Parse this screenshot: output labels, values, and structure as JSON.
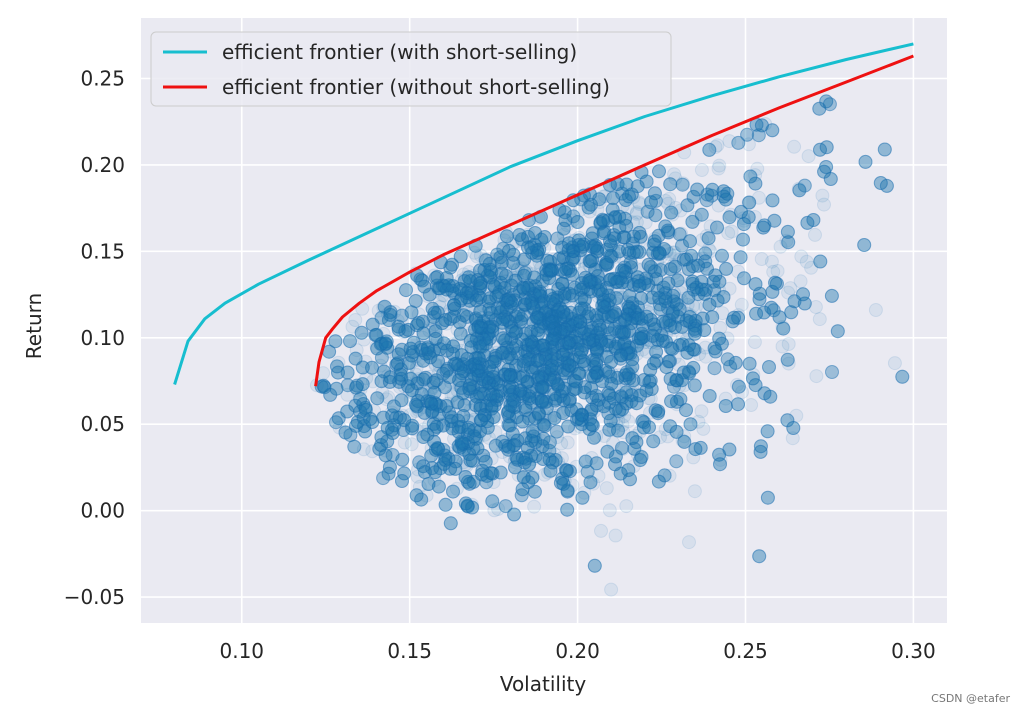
{
  "chart_data": {
    "type": "scatter",
    "xlabel": "Volatility",
    "ylabel": "Return",
    "xlim": [
      0.07,
      0.31
    ],
    "ylim": [
      -0.065,
      0.285
    ],
    "xticks": [
      0.1,
      0.15,
      0.2,
      0.25,
      0.3
    ],
    "xtick_labels": [
      "0.10",
      "0.15",
      "0.20",
      "0.25",
      "0.30"
    ],
    "yticks": [
      -0.05,
      0.0,
      0.05,
      0.1,
      0.15,
      0.2,
      0.25
    ],
    "ytick_labels": [
      "−0.05",
      "0.00",
      "0.05",
      "0.10",
      "0.15",
      "0.20",
      "0.25"
    ],
    "grid": true,
    "legend_position": "upper-left",
    "background": "#eaeaf2",
    "series": [
      {
        "name": "efficient frontier (with short-selling)",
        "kind": "line",
        "color": "#17becf",
        "x": [
          0.08,
          0.084,
          0.089,
          0.095,
          0.105,
          0.12,
          0.14,
          0.16,
          0.18,
          0.2,
          0.22,
          0.24,
          0.26,
          0.28,
          0.3
        ],
        "y": [
          0.073,
          0.098,
          0.111,
          0.12,
          0.131,
          0.145,
          0.163,
          0.181,
          0.199,
          0.214,
          0.228,
          0.24,
          0.251,
          0.261,
          0.27
        ]
      },
      {
        "name": "efficient frontier (without short-selling)",
        "kind": "line",
        "color": "#ee1111",
        "x": [
          0.122,
          0.123,
          0.125,
          0.127,
          0.13,
          0.135,
          0.14,
          0.15,
          0.16,
          0.175,
          0.19,
          0.205,
          0.22,
          0.24,
          0.26,
          0.28,
          0.3
        ],
        "y": [
          0.072,
          0.086,
          0.1,
          0.105,
          0.112,
          0.12,
          0.127,
          0.138,
          0.148,
          0.161,
          0.174,
          0.187,
          0.2,
          0.217,
          0.233,
          0.248,
          0.263
        ]
      },
      {
        "name": "",
        "kind": "scatter-cloud",
        "color": "#1f77b4",
        "count": 9000,
        "point_alpha": 0.09,
        "x_range": [
          0.121,
          0.3
        ],
        "y_range": [
          -0.048,
          0.25
        ]
      }
    ]
  },
  "watermark": "CSDN @etafer"
}
